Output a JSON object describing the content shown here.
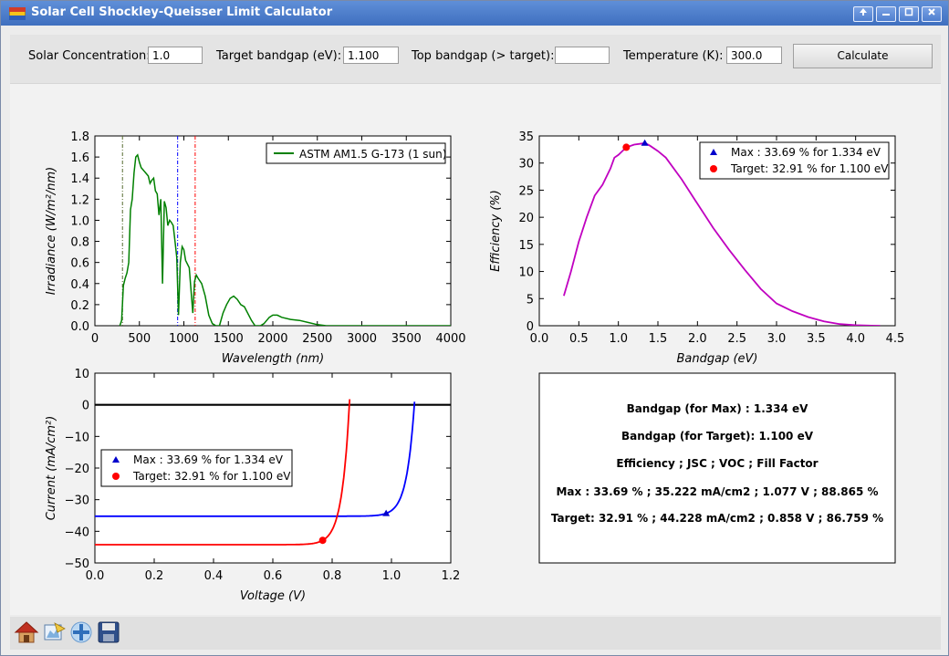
{
  "window": {
    "title": "Solar Cell Shockley-Queisser Limit Calculator"
  },
  "controls": {
    "concentration_label": "Solar Concentration:",
    "concentration_value": "1.0",
    "bandgap_label": "Target bandgap (eV):",
    "bandgap_value": "1.100",
    "top_label": "Top bandgap (> target):",
    "top_value": "",
    "temp_label": "Temperature (K):",
    "temp_value": "300.0",
    "calculate_label": "Calculate"
  },
  "chart_data": [
    {
      "type": "line",
      "xlabel": "Wavelength (nm)",
      "ylabel": "Irradiance (W/m²/nm)",
      "xlim": [
        0,
        4000
      ],
      "ylim": [
        0,
        1.8
      ],
      "xticks": [
        "0",
        "500",
        "1000",
        "1500",
        "2000",
        "2500",
        "3000",
        "3500",
        "4000"
      ],
      "yticks": [
        "0.0",
        "0.2",
        "0.4",
        "0.6",
        "0.8",
        "1.0",
        "1.2",
        "1.4",
        "1.6",
        "1.8"
      ],
      "legend": "top-right",
      "series": [
        {
          "name": "ASTM AM1.5 G-173 (1 sun)",
          "color": "#008000",
          "x": [
            280,
            300,
            320,
            340,
            360,
            380,
            400,
            420,
            440,
            460,
            480,
            500,
            520,
            540,
            560,
            580,
            600,
            620,
            640,
            660,
            680,
            700,
            720,
            740,
            760,
            780,
            800,
            820,
            840,
            860,
            880,
            900,
            920,
            940,
            960,
            980,
            1000,
            1020,
            1060,
            1100,
            1120,
            1140,
            1160,
            1200,
            1240,
            1280,
            1320,
            1360,
            1400,
            1440,
            1480,
            1520,
            1560,
            1600,
            1640,
            1680,
            1760,
            1800,
            1860,
            1900,
            1960,
            2000,
            2050,
            2100,
            2200,
            2300,
            2400,
            2500,
            2600,
            2800,
            3000,
            3500,
            4000
          ],
          "y": [
            0.0,
            0.05,
            0.38,
            0.45,
            0.5,
            0.6,
            1.1,
            1.2,
            1.45,
            1.6,
            1.62,
            1.55,
            1.5,
            1.48,
            1.46,
            1.44,
            1.42,
            1.35,
            1.38,
            1.4,
            1.28,
            1.25,
            1.05,
            1.2,
            0.4,
            1.18,
            1.12,
            0.95,
            1.0,
            0.98,
            0.95,
            0.8,
            0.65,
            0.1,
            0.6,
            0.75,
            0.72,
            0.62,
            0.55,
            0.12,
            0.42,
            0.48,
            0.45,
            0.4,
            0.28,
            0.1,
            0.02,
            0.0,
            0.0,
            0.12,
            0.2,
            0.26,
            0.28,
            0.25,
            0.2,
            0.18,
            0.05,
            0.0,
            0.0,
            0.02,
            0.08,
            0.1,
            0.1,
            0.08,
            0.06,
            0.05,
            0.03,
            0.01,
            0.0,
            0.0,
            0.0,
            0.0,
            0.0
          ]
        }
      ],
      "vlines": [
        {
          "x": 310,
          "color": "#556b2f"
        },
        {
          "x": 930,
          "color": "#0000ff"
        },
        {
          "x": 1127,
          "color": "#ff0000"
        }
      ]
    },
    {
      "type": "line",
      "xlabel": "Bandgap (eV)",
      "ylabel": "Efficiency (%)",
      "xlim": [
        0,
        4.5
      ],
      "ylim": [
        0,
        35
      ],
      "xticks": [
        "0.0",
        "0.5",
        "1.0",
        "1.5",
        "2.0",
        "2.5",
        "3.0",
        "3.5",
        "4.0",
        "4.5"
      ],
      "yticks": [
        "0",
        "5",
        "10",
        "15",
        "20",
        "25",
        "30",
        "35"
      ],
      "legend": "top-right",
      "series": [
        {
          "name": "Efficiency",
          "color": "#c000c0",
          "x": [
            0.31,
            0.4,
            0.5,
            0.6,
            0.7,
            0.8,
            0.9,
            0.95,
            1.0,
            1.1,
            1.2,
            1.3,
            1.34,
            1.4,
            1.5,
            1.6,
            1.8,
            2.0,
            2.2,
            2.4,
            2.6,
            2.8,
            3.0,
            3.2,
            3.4,
            3.6,
            3.8,
            4.0,
            4.2,
            4.31
          ],
          "y": [
            5.5,
            10,
            15.5,
            20,
            24,
            26,
            29,
            31,
            31.5,
            32.9,
            33.4,
            33.6,
            33.69,
            33.2,
            32.2,
            31,
            27,
            22.5,
            18,
            14,
            10.3,
            6.8,
            4.1,
            2.7,
            1.6,
            0.8,
            0.3,
            0.1,
            0.02,
            0.0
          ]
        }
      ],
      "points": [
        {
          "label": "Max   : 33.69 % for 1.334 eV",
          "x": 1.334,
          "y": 33.69,
          "marker": "triangle",
          "color": "#0000cc"
        },
        {
          "label": "Target: 32.91 % for 1.100 eV",
          "x": 1.1,
          "y": 32.91,
          "marker": "circle",
          "color": "#ff0000"
        }
      ]
    },
    {
      "type": "line",
      "xlabel": "Voltage (V)",
      "ylabel": "Current (mA/cm²)",
      "xlim": [
        0,
        1.2
      ],
      "ylim": [
        -50,
        10
      ],
      "xticks": [
        "0.0",
        "0.2",
        "0.4",
        "0.6",
        "0.8",
        "1.0",
        "1.2"
      ],
      "yticks": [
        "10",
        "0",
        "−10",
        "−20",
        "−30",
        "−40",
        "−50"
      ],
      "legend": "center-left",
      "hline": 0,
      "series": [
        {
          "name": "Max",
          "color": "#0000ff",
          "jsc": 35.222,
          "voc": 1.077,
          "vmax": 1.0777
        },
        {
          "name": "Target",
          "color": "#ff0000",
          "jsc": 44.228,
          "voc": 0.858,
          "vmax": 0.859
        }
      ],
      "points": [
        {
          "label": "Max   : 33.69 % for 1.334 eV",
          "x": 0.982,
          "y": -34.3,
          "marker": "triangle",
          "color": "#0000cc"
        },
        {
          "label": "Target: 32.91 % for 1.100 eV",
          "x": 0.768,
          "y": -42.85,
          "marker": "circle",
          "color": "#ff0000"
        }
      ]
    }
  ],
  "results": {
    "bandgap_max": "Bandgap (for Max)   : 1.334 eV",
    "bandgap_target": "Bandgap (for Target): 1.100 eV",
    "header": "Efficiency ; JSC ; VOC ; Fill Factor",
    "max_line": "Max   : 33.69 % ; 35.222 mA/cm2 ; 1.077 V ; 88.865 %",
    "target_line": "Target: 32.91 % ; 44.228 mA/cm2 ; 0.858 V ; 86.759 %"
  },
  "nav": {
    "icons": [
      "home-icon",
      "back-icon",
      "pan-icon",
      "save-icon"
    ]
  }
}
